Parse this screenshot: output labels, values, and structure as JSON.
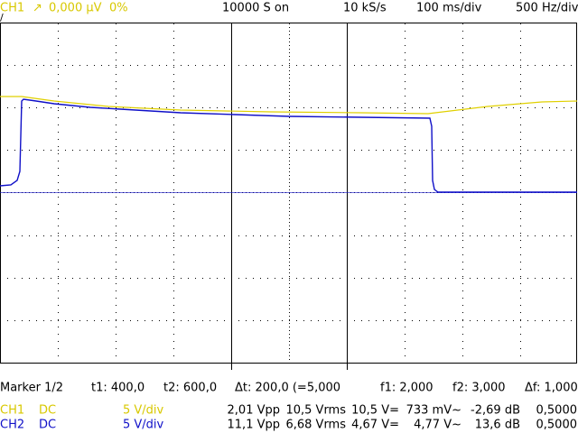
{
  "header": {
    "channel": "CH1",
    "trigger": "↗",
    "level": "0,000 µV",
    "percent": "0%",
    "slope_mark": "/",
    "averaging": "10000 S on",
    "sample_rate": "10 kS/s",
    "time_div": "100 ms/div",
    "freq_div": "500 Hz/div"
  },
  "markers": {
    "label": "Marker 1/2",
    "t1": "t1: 400,0",
    "t2": "t2: 600,0",
    "dt": "Δt: 200,0 (=5,000",
    "f1": "f1: 2,000",
    "f2": "f2: 3,000",
    "df": "Δf: 1,000"
  },
  "channels": [
    {
      "name": "CH1",
      "coupling": "DC",
      "scale": "5 V/div",
      "vpp": "2,01 Vpp",
      "vrms": "10,5 Vrms",
      "vdc": "10,5 V=",
      "vac": "733 mV~",
      "db": "-2,69 dB",
      "ratio": "0,5000"
    },
    {
      "name": "CH2",
      "coupling": "DC",
      "scale": "5 V/div",
      "vpp": "11,1 Vpp",
      "vrms": "6,68 Vrms",
      "vdc": "4,67 V=",
      "vac": "4,77 V~",
      "db": "13,6 dB",
      "ratio": "0,5000"
    }
  ]
}
